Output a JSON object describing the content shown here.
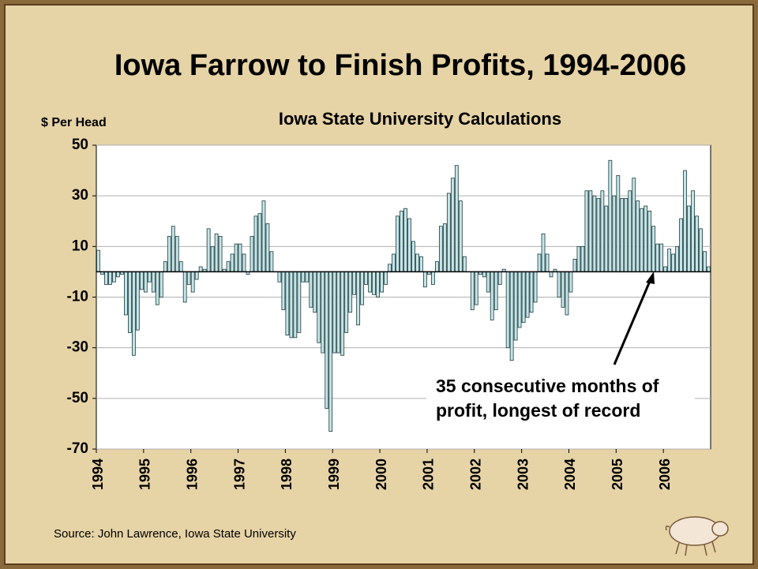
{
  "chart_data": {
    "type": "bar",
    "title": "Iowa Farrow to Finish Profits, 1994-2006",
    "subtitle": "Iowa State University Calculations",
    "y_label": "$ Per Head",
    "annotation": [
      "35 consecutive months of",
      "profit, longest of record"
    ],
    "source": "Source: John Lawrence, Iowa State University",
    "color": "#c6e4e8",
    "grid": true,
    "ylim": [
      -70,
      50
    ],
    "yticks": [
      50,
      30,
      10,
      -10,
      -30,
      -50,
      -70
    ],
    "categories": [
      "1994",
      null,
      null,
      null,
      null,
      null,
      null,
      null,
      null,
      null,
      null,
      null,
      "1995",
      null,
      null,
      null,
      null,
      null,
      null,
      null,
      null,
      null,
      null,
      null,
      "1996",
      null,
      null,
      null,
      null,
      null,
      null,
      null,
      null,
      null,
      null,
      null,
      "1997",
      null,
      null,
      null,
      null,
      null,
      null,
      null,
      null,
      null,
      null,
      null,
      "1998",
      null,
      null,
      null,
      null,
      null,
      null,
      null,
      null,
      null,
      null,
      null,
      "1999",
      null,
      null,
      null,
      null,
      null,
      null,
      null,
      null,
      null,
      null,
      null,
      "2000",
      null,
      null,
      null,
      null,
      null,
      null,
      null,
      null,
      null,
      null,
      null,
      "2001",
      null,
      null,
      null,
      null,
      null,
      null,
      null,
      null,
      null,
      null,
      null,
      "2002",
      null,
      null,
      null,
      null,
      null,
      null,
      null,
      null,
      null,
      null,
      null,
      "2003",
      null,
      null,
      null,
      null,
      null,
      null,
      null,
      null,
      null,
      null,
      null,
      "2004",
      null,
      null,
      null,
      null,
      null,
      null,
      null,
      null,
      null,
      null,
      null,
      "2005",
      null,
      null,
      null,
      null,
      null,
      null,
      null,
      null,
      null,
      null,
      null,
      "2006",
      null,
      null,
      null,
      null,
      null,
      null,
      null,
      null,
      null,
      null,
      null
    ],
    "values": [
      8.5,
      -1,
      -5,
      -5,
      -4,
      -2,
      -1,
      -17,
      -24,
      -33,
      -23,
      -7,
      -8,
      -4,
      -8,
      -13,
      -10,
      4,
      14,
      18,
      14,
      4,
      -12,
      -5,
      -8,
      -3,
      2,
      1,
      17,
      10,
      15,
      14,
      1,
      4,
      7,
      11,
      11,
      7,
      -1,
      14,
      22,
      23,
      28,
      19,
      8,
      0,
      -4,
      -15,
      -25,
      -26,
      -26,
      -24,
      -4,
      -4,
      -14,
      -16,
      -28,
      -32,
      -54,
      -63,
      -32,
      -32,
      -33,
      -24,
      -16,
      -9,
      -21,
      -13,
      -5,
      -8,
      -9,
      -10,
      -8,
      -5,
      3,
      7,
      22,
      24,
      25,
      21,
      12,
      7,
      6,
      -6,
      -1,
      -5,
      4,
      18,
      19,
      31,
      37,
      42,
      28,
      6,
      0,
      -15,
      -13,
      -1,
      -2,
      -8,
      -19,
      -15,
      -5,
      1,
      -30,
      -35,
      -27,
      -22,
      -20,
      -18,
      -16,
      -12,
      7,
      15,
      7,
      -2,
      1,
      -10,
      -14,
      -17,
      -8,
      5,
      10,
      10,
      32,
      32,
      30,
      29,
      32,
      26,
      44,
      30,
      38,
      29,
      29,
      32,
      37,
      28,
      25,
      26,
      24,
      18,
      11,
      11,
      2,
      9,
      7,
      10,
      21,
      40,
      26,
      32,
      22,
      17,
      8,
      2
    ]
  }
}
